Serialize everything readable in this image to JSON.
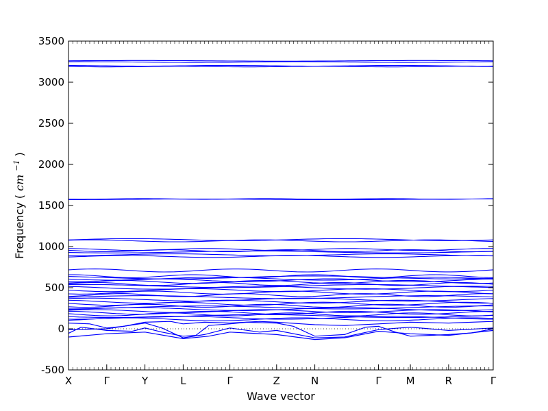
{
  "chart_data": {
    "type": "line",
    "title": "",
    "xlabel": "Wave vector",
    "ylabel": "Frequency",
    "ylabel_unit_base": "cm",
    "ylabel_unit_exp": "−1",
    "ylim": [
      -500,
      3500
    ],
    "yticks": [
      -500,
      0,
      500,
      1000,
      1500,
      2000,
      2500,
      3000,
      3500
    ],
    "grid": false,
    "line_color": "#0000ff",
    "zero_line": true,
    "kpoints": [
      {
        "label": "X",
        "x": 0.0
      },
      {
        "label": "Γ",
        "x": 0.09
      },
      {
        "label": "Y",
        "x": 0.18
      },
      {
        "label": "L",
        "x": 0.27
      },
      {
        "label": "Γ",
        "x": 0.38
      },
      {
        "label": "Z",
        "x": 0.49
      },
      {
        "label": "N",
        "x": 0.58
      },
      {
        "label": "Γ",
        "x": 0.73
      },
      {
        "label": "M",
        "x": 0.805
      },
      {
        "label": "R",
        "x": 0.895
      },
      {
        "label": "Γ",
        "x": 1.0
      }
    ],
    "flat_bands": [
      3260,
      3245,
      3200,
      3190,
      1580,
      1575,
      1085,
      1070,
      965,
      950,
      935,
      900,
      880,
      710,
      640,
      625,
      610,
      590,
      570,
      545,
      520,
      500,
      470,
      440,
      410,
      385,
      355,
      330,
      305,
      280,
      260,
      240,
      215,
      195,
      175,
      155,
      135,
      115
    ],
    "low_bands": [
      {
        "points": [
          [
            0.0,
            -55
          ],
          [
            0.03,
            20
          ],
          [
            0.09,
            -20
          ],
          [
            0.15,
            -30
          ],
          [
            0.18,
            10
          ],
          [
            0.22,
            -40
          ],
          [
            0.27,
            -90
          ],
          [
            0.3,
            -80
          ],
          [
            0.33,
            40
          ],
          [
            0.38,
            60
          ],
          [
            0.42,
            80
          ],
          [
            0.49,
            70
          ],
          [
            0.53,
            30
          ],
          [
            0.58,
            -90
          ],
          [
            0.65,
            -70
          ],
          [
            0.7,
            20
          ],
          [
            0.73,
            30
          ],
          [
            0.77,
            -40
          ],
          [
            0.805,
            -90
          ],
          [
            0.85,
            -80
          ],
          [
            0.895,
            -70
          ],
          [
            0.95,
            -50
          ],
          [
            1.0,
            0
          ]
        ]
      },
      {
        "points": [
          [
            0.0,
            -100
          ],
          [
            0.09,
            -60
          ],
          [
            0.18,
            -40
          ],
          [
            0.27,
            -120
          ],
          [
            0.33,
            -90
          ],
          [
            0.38,
            -40
          ],
          [
            0.49,
            -70
          ],
          [
            0.58,
            -130
          ],
          [
            0.65,
            -110
          ],
          [
            0.73,
            -30
          ],
          [
            0.805,
            -60
          ],
          [
            0.895,
            -80
          ],
          [
            1.0,
            -20
          ]
        ]
      },
      {
        "points": [
          [
            0.0,
            -10
          ],
          [
            0.09,
            0
          ],
          [
            0.18,
            70
          ],
          [
            0.22,
            10
          ],
          [
            0.27,
            -110
          ],
          [
            0.32,
            -70
          ],
          [
            0.38,
            10
          ],
          [
            0.45,
            -40
          ],
          [
            0.49,
            -20
          ],
          [
            0.58,
            -110
          ],
          [
            0.65,
            -100
          ],
          [
            0.73,
            -10
          ],
          [
            0.805,
            20
          ],
          [
            0.895,
            -20
          ],
          [
            1.0,
            10
          ]
        ]
      },
      {
        "points": [
          [
            0.0,
            70
          ],
          [
            0.05,
            60
          ],
          [
            0.09,
            10
          ],
          [
            0.13,
            30
          ],
          [
            0.18,
            80
          ],
          [
            0.24,
            90
          ],
          [
            0.27,
            60
          ],
          [
            0.32,
            80
          ],
          [
            0.38,
            70
          ],
          [
            0.45,
            90
          ],
          [
            0.49,
            80
          ],
          [
            0.55,
            60
          ],
          [
            0.58,
            50
          ],
          [
            0.65,
            40
          ],
          [
            0.73,
            60
          ],
          [
            0.805,
            80
          ],
          [
            0.895,
            70
          ],
          [
            1.0,
            90
          ]
        ]
      }
    ]
  }
}
